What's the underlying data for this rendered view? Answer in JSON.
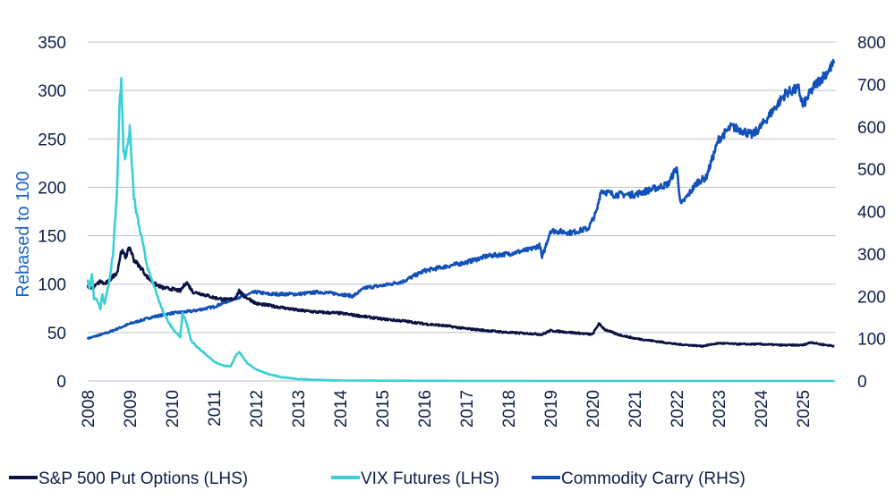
{
  "chart_data": {
    "type": "line",
    "title": "",
    "xlabel": "",
    "ylabel": "Rebased to 100",
    "x_ticks": [
      "2008",
      "2009",
      "2010",
      "2011",
      "2012",
      "2013",
      "2014",
      "2015",
      "2016",
      "2017",
      "2018",
      "2019",
      "2020",
      "2021",
      "2022",
      "2023",
      "2024",
      "2025"
    ],
    "xlim": [
      2008.0,
      2025.75
    ],
    "y_left": {
      "ylim": [
        0,
        350
      ],
      "ticks": [
        "0",
        "50",
        "100",
        "150",
        "200",
        "250",
        "300",
        "350"
      ]
    },
    "y_right": {
      "ylim": [
        0,
        800
      ],
      "ticks": [
        "0",
        "100",
        "200",
        "300",
        "400",
        "500",
        "600",
        "700",
        "800"
      ]
    },
    "grid": true,
    "legend_position": "bottom",
    "series": [
      {
        "name": "S&P 500 Put Options (LHS)",
        "axis": "left",
        "color": "#0c1340",
        "x": [
          2008.0,
          2008.1,
          2008.2,
          2008.3,
          2008.4,
          2008.5,
          2008.6,
          2008.7,
          2008.8,
          2008.9,
          2009.0,
          2009.1,
          2009.2,
          2009.3,
          2009.4,
          2009.5,
          2009.6,
          2009.8,
          2010.0,
          2010.2,
          2010.35,
          2010.5,
          2010.7,
          2011.0,
          2011.3,
          2011.5,
          2011.6,
          2011.7,
          2011.9,
          2012.0,
          2012.3,
          2012.6,
          2013.0,
          2013.5,
          2014.0,
          2014.5,
          2015.0,
          2015.5,
          2016.0,
          2016.5,
          2017.0,
          2017.5,
          2018.0,
          2018.5,
          2018.8,
          2019.0,
          2019.5,
          2020.0,
          2020.15,
          2020.3,
          2020.6,
          2021.0,
          2021.5,
          2022.0,
          2022.3,
          2022.6,
          2023.0,
          2023.5,
          2024.0,
          2024.5,
          2025.0,
          2025.2,
          2025.4,
          2025.75
        ],
        "values": [
          98,
          96,
          99,
          103,
          100,
          103,
          108,
          112,
          135,
          128,
          138,
          125,
          120,
          115,
          108,
          104,
          100,
          96,
          95,
          93,
          102,
          92,
          90,
          86,
          84,
          85,
          93,
          88,
          83,
          80,
          78,
          76,
          73,
          71,
          70,
          67,
          64,
          62,
          59,
          57,
          54,
          52,
          50,
          49,
          48,
          52,
          50,
          48,
          59,
          53,
          48,
          44,
          41,
          38,
          37,
          36,
          39,
          38,
          38,
          37,
          37,
          40,
          38,
          36
        ]
      },
      {
        "name": "VIX Futures (LHS)",
        "axis": "left",
        "color": "#3ccfd4",
        "x": [
          2008.0,
          2008.05,
          2008.1,
          2008.15,
          2008.2,
          2008.3,
          2008.35,
          2008.4,
          2008.5,
          2008.6,
          2008.7,
          2008.75,
          2008.8,
          2008.85,
          2008.9,
          2009.0,
          2009.1,
          2009.2,
          2009.3,
          2009.4,
          2009.6,
          2009.8,
          2010.0,
          2010.1,
          2010.2,
          2010.25,
          2010.35,
          2010.45,
          2010.6,
          2010.8,
          2011.0,
          2011.2,
          2011.4,
          2011.5,
          2011.6,
          2011.7,
          2011.8,
          2012.0,
          2012.3,
          2012.6,
          2013.0,
          2013.5,
          2014.0,
          2015.0,
          2016.0,
          2017.0,
          2018.0,
          2019.0,
          2020.0,
          2021.0,
          2022.0,
          2023.0,
          2024.0,
          2025.0,
          2025.75
        ],
        "values": [
          105,
          95,
          110,
          85,
          85,
          75,
          90,
          80,
          100,
          130,
          200,
          280,
          315,
          240,
          230,
          260,
          190,
          165,
          145,
          120,
          95,
          70,
          55,
          50,
          45,
          70,
          60,
          42,
          35,
          28,
          20,
          16,
          15,
          25,
          30,
          24,
          18,
          12,
          7,
          4,
          2,
          1,
          0.5,
          0.3,
          0.2,
          0.1,
          0.1,
          0,
          0,
          0,
          0,
          0,
          0,
          0,
          0
        ]
      },
      {
        "name": "Commodity Carry (RHS)",
        "axis": "right",
        "color": "#1251b9",
        "x": [
          2008.0,
          2008.5,
          2009.0,
          2009.5,
          2010.0,
          2010.5,
          2011.0,
          2011.5,
          2012.0,
          2012.3,
          2012.6,
          2013.0,
          2013.5,
          2014.0,
          2014.3,
          2014.6,
          2015.0,
          2015.5,
          2016.0,
          2016.5,
          2017.0,
          2017.5,
          2018.0,
          2018.5,
          2018.75,
          2018.8,
          2019.0,
          2019.5,
          2019.9,
          2020.1,
          2020.2,
          2020.5,
          2021.0,
          2021.5,
          2021.8,
          2022.0,
          2022.1,
          2022.5,
          2022.7,
          2022.8,
          2023.0,
          2023.3,
          2023.6,
          2023.8,
          2024.0,
          2024.3,
          2024.6,
          2024.9,
          2025.0,
          2025.3,
          2025.5,
          2025.75
        ],
        "values": [
          100,
          115,
          135,
          150,
          160,
          165,
          175,
          195,
          210,
          205,
          205,
          205,
          210,
          205,
          200,
          220,
          225,
          235,
          260,
          270,
          280,
          295,
          300,
          310,
          320,
          290,
          355,
          350,
          360,
          400,
          450,
          440,
          440,
          455,
          465,
          505,
          415,
          470,
          480,
          510,
          570,
          600,
          590,
          580,
          600,
          640,
          680,
          690,
          650,
          700,
          720,
          750
        ]
      }
    ]
  }
}
